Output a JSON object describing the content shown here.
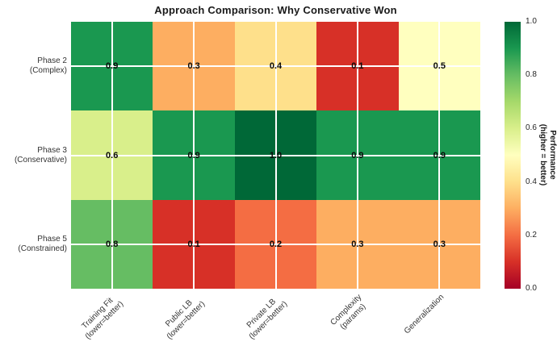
{
  "chart_data": {
    "type": "heatmap",
    "title": "Approach Comparison: Why Conservative Won",
    "colormap": "RdYlGn",
    "grid": true,
    "rows": [
      {
        "label_lines": [
          "Phase 2",
          "(Complex)"
        ]
      },
      {
        "label_lines": [
          "Phase 3",
          "(Conservative)"
        ]
      },
      {
        "label_lines": [
          "Phase 5",
          "(Constrained)"
        ]
      }
    ],
    "columns": [
      {
        "label_lines": [
          "Training Fit",
          "(lower=better)"
        ]
      },
      {
        "label_lines": [
          "Public LB",
          "(lower=better)"
        ]
      },
      {
        "label_lines": [
          "Private LB",
          "(lower=better)"
        ]
      },
      {
        "label_lines": [
          "Complexity",
          "(params)"
        ]
      },
      {
        "label_lines": [
          "Generalization"
        ]
      }
    ],
    "values": [
      [
        0.9,
        0.3,
        0.4,
        0.1,
        0.5
      ],
      [
        0.6,
        0.9,
        1.0,
        0.9,
        0.9
      ],
      [
        0.8,
        0.1,
        0.2,
        0.3,
        0.3
      ]
    ],
    "value_labels": [
      [
        "0.9",
        "0.3",
        "0.4",
        "0.1",
        "0.5"
      ],
      [
        "0.6",
        "0.9",
        "1.0",
        "0.9",
        "0.9"
      ],
      [
        "0.8",
        "0.1",
        "0.2",
        "0.3",
        "0.3"
      ]
    ],
    "cell_colors": [
      [
        "#1a9850",
        "#fdae61",
        "#fee08b",
        "#d73027",
        "#ffffbf"
      ],
      [
        "#d9ef8b",
        "#1a9850",
        "#006837",
        "#1a9850",
        "#1a9850"
      ],
      [
        "#66bd63",
        "#d73027",
        "#f46d43",
        "#fdae61",
        "#fdae61"
      ]
    ],
    "annotation_color": "#0a0a0a",
    "colorbar": {
      "range": [
        0.0,
        1.0
      ],
      "ticks": [
        "1.0",
        "0.8",
        "0.6",
        "0.4",
        "0.2",
        "0.0"
      ],
      "tick_values": [
        1.0,
        0.8,
        0.6,
        0.4,
        0.2,
        0.0
      ],
      "label_lines": [
        "Performance",
        "(higher = better)"
      ],
      "gradient_top_to_bottom": [
        "#006837",
        "#1a9850",
        "#66bd63",
        "#a6d96a",
        "#d9ef8b",
        "#ffffbf",
        "#fee08b",
        "#fdae61",
        "#f46d43",
        "#d73027",
        "#a50026"
      ]
    }
  }
}
